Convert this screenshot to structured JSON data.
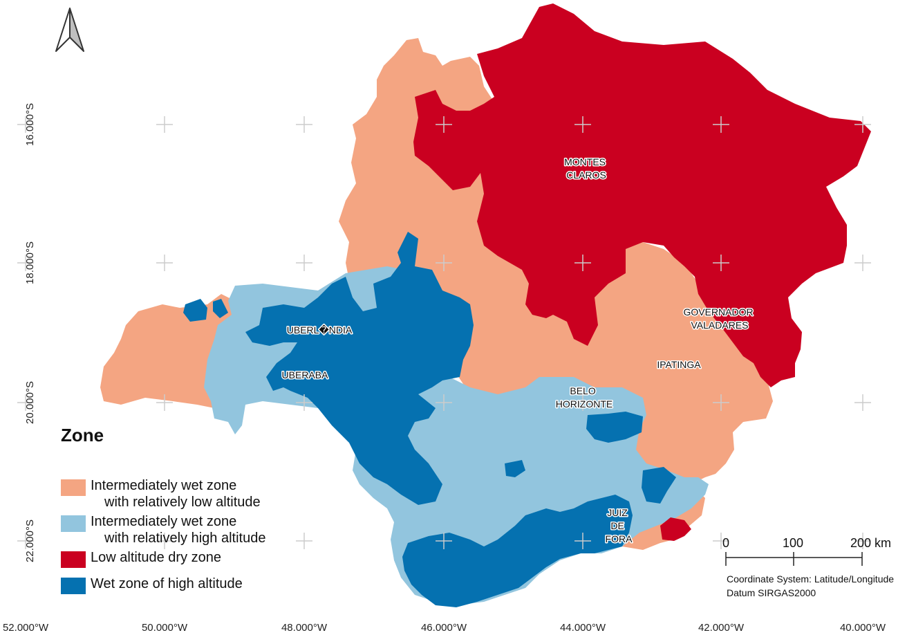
{
  "map": {
    "lat_labels": [
      "16.000°S",
      "18.000°S",
      "20.000°S",
      "22.000°S"
    ],
    "lon_labels": [
      "52.000°W",
      "50.000°W",
      "48.000°W",
      "46.000°W",
      "44.000°W",
      "42.000°W",
      "40.000°W"
    ],
    "north_arrow_icon": "north-arrow-icon",
    "cities": {
      "montes_claros": [
        "MONTES",
        "CLAROS"
      ],
      "governador_valadares": [
        "GOVERNADOR",
        "VALADARES"
      ],
      "uberlandia": "UBERL�NDIA",
      "uberaba": "UBERABA",
      "ipatinga": "IPATINGA",
      "belo_horizonte": [
        "BELO",
        "HORIZONTE"
      ],
      "juiz_de_fora": [
        "JUIZ",
        "DE",
        "FORA"
      ]
    }
  },
  "colors": {
    "low_wet": "#f4a582",
    "high_wet": "#92c5de",
    "dry": "#ca0020",
    "wet_high": "#0571b0"
  },
  "legend": {
    "title": "Zone",
    "items": [
      {
        "line1": "Intermediately wet zone",
        "line2": "with relatively low altitude",
        "color": "#f4a582"
      },
      {
        "line1": "Intermediately wet zone",
        "line2": "with relatively high altitude",
        "color": "#92c5de"
      },
      {
        "line1": "Low altitude dry zone",
        "color": "#ca0020"
      },
      {
        "line1": "Wet zone of high altitude",
        "color": "#0571b0"
      }
    ]
  },
  "scale_bar": {
    "labels": [
      "0",
      "100",
      "200 km"
    ]
  },
  "coordinate_note": {
    "line1": "Coordinate System: Latitude/Longitude",
    "line2": "Datum SIRGAS2000"
  }
}
